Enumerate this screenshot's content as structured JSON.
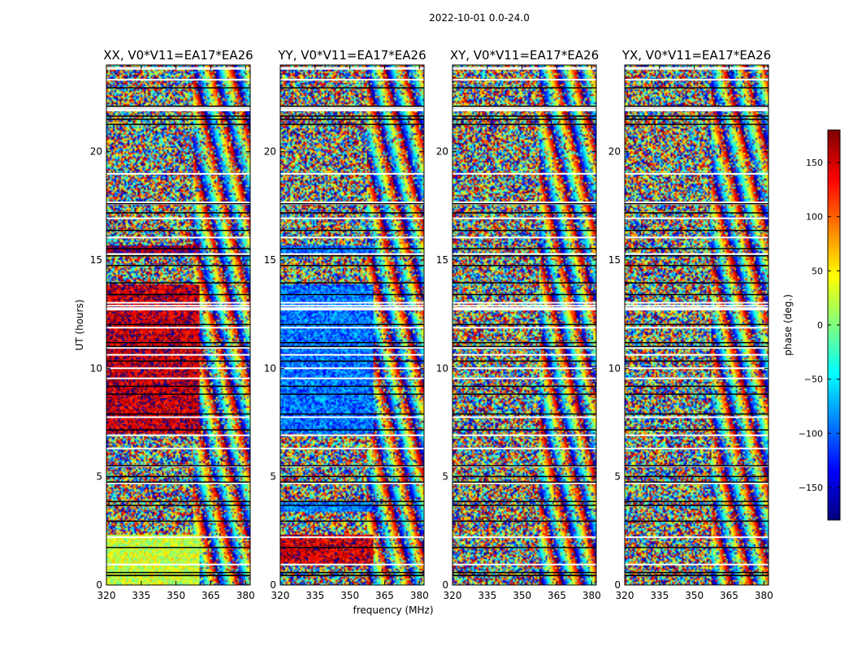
{
  "chart_data": {
    "type": "heatmap",
    "suptitle": "2022-10-01 0.0-24.0",
    "xlabel": "frequency (MHz)",
    "ylabel": "UT (hours)",
    "xlim": [
      320,
      382
    ],
    "ylim": [
      0,
      24
    ],
    "xticks": [
      320,
      335,
      350,
      365,
      380
    ],
    "yticks": [
      0,
      5,
      10,
      15,
      20
    ],
    "colorbar": {
      "label": "phase (deg.)",
      "range": [
        -180,
        180
      ],
      "ticks": [
        150,
        100,
        50,
        0,
        -50,
        -100,
        -150
      ],
      "tick_labels": [
        "150",
        "100",
        "50",
        "0",
        "−50",
        "−100",
        "−150"
      ]
    },
    "panels": [
      {
        "title": "XX, V0*V11=EA17*EA26",
        "coherent_regions": [
          {
            "t_start": 7.0,
            "t_end": 13.9,
            "f_start": 320,
            "f_end": 360,
            "phase_deg": 155
          },
          {
            "t_start": 15.3,
            "t_end": 15.7,
            "f_start": 320,
            "f_end": 360,
            "phase_deg": 175
          },
          {
            "t_start": 0.0,
            "t_end": 2.3,
            "f_start": 320,
            "f_end": 360,
            "phase_deg": 25
          }
        ]
      },
      {
        "title": "YY, V0*V11=EA17*EA26",
        "coherent_regions": [
          {
            "t_start": 7.0,
            "t_end": 13.9,
            "f_start": 320,
            "f_end": 360,
            "phase_deg": -95
          },
          {
            "t_start": 15.3,
            "t_end": 15.7,
            "f_start": 320,
            "f_end": 360,
            "phase_deg": -100
          },
          {
            "t_start": 1.0,
            "t_end": 2.3,
            "f_start": 320,
            "f_end": 360,
            "phase_deg": 150
          },
          {
            "t_start": 3.4,
            "t_end": 3.8,
            "f_start": 320,
            "f_end": 360,
            "phase_deg": -95
          }
        ]
      },
      {
        "title": "XY, V0*V11=EA17*EA26",
        "coherent_regions": []
      },
      {
        "title": "YX, V0*V11=EA17*EA26",
        "coherent_regions": []
      }
    ]
  }
}
